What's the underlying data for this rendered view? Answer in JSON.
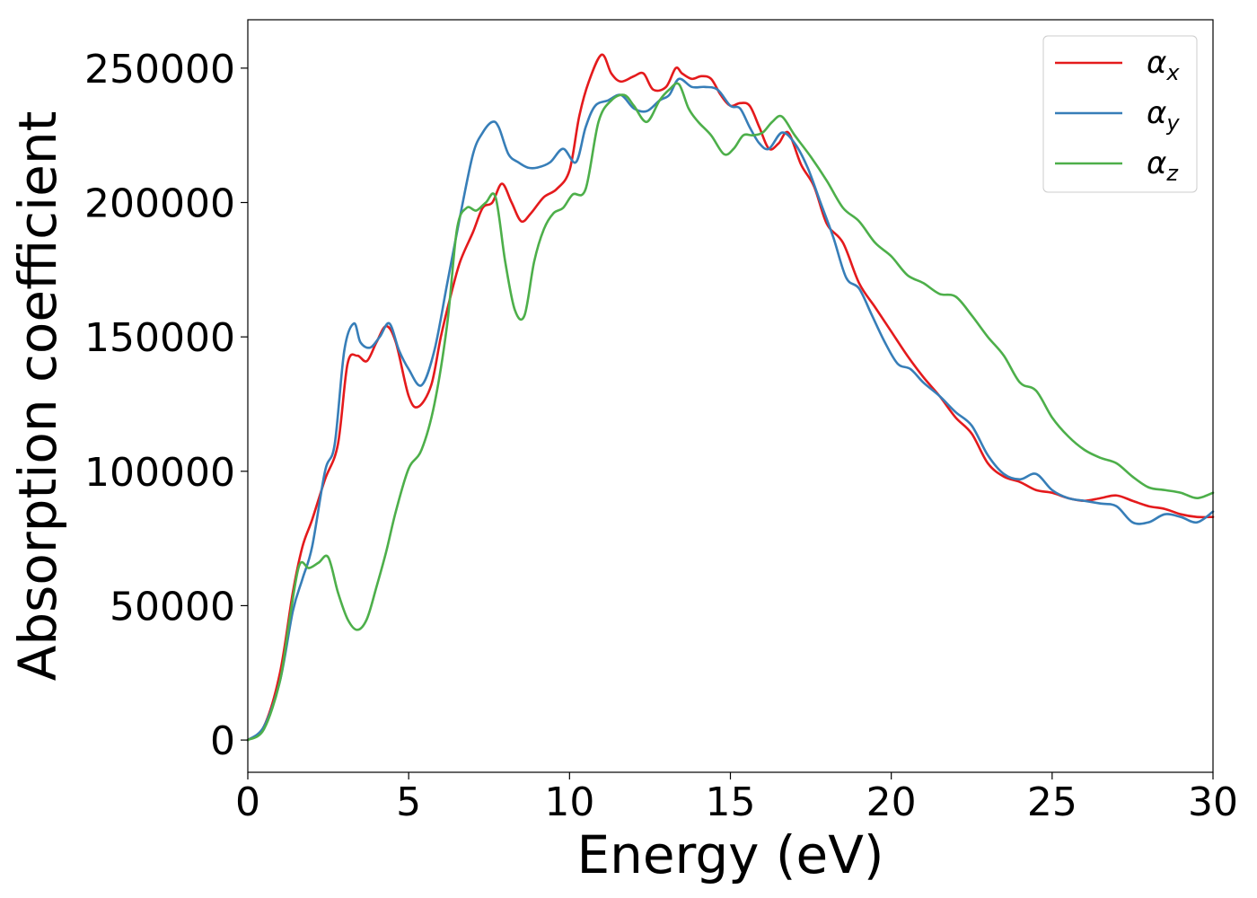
{
  "chart_data": {
    "type": "line",
    "xlabel": "Energy (eV)",
    "ylabel": "Absorption coefficient",
    "xlim": [
      0,
      30
    ],
    "ylim": [
      -12000,
      268000
    ],
    "xticks": [
      0,
      5,
      10,
      15,
      20,
      25,
      30
    ],
    "yticks": [
      0,
      50000,
      100000,
      150000,
      200000,
      250000
    ],
    "grid": false,
    "legend_position": "top-right",
    "series": [
      {
        "name": "αx",
        "symbol": "α",
        "subscript": "x",
        "color": "#e41a1c",
        "x": [
          0,
          0.5,
          1.0,
          1.4,
          1.7,
          2.0,
          2.4,
          2.8,
          3.1,
          3.4,
          3.7,
          4.0,
          4.3,
          4.6,
          5.0,
          5.3,
          5.7,
          6.0,
          6.3,
          6.6,
          7.0,
          7.3,
          7.6,
          7.9,
          8.2,
          8.5,
          8.8,
          9.2,
          9.6,
          10.0,
          10.3,
          10.6,
          11.0,
          11.3,
          11.6,
          12.0,
          12.3,
          12.6,
          13.0,
          13.3,
          13.5,
          13.8,
          14.1,
          14.4,
          14.7,
          15.0,
          15.3,
          15.6,
          15.9,
          16.2,
          16.5,
          16.8,
          17.2,
          17.6,
          18.0,
          18.5,
          19.0,
          19.5,
          20.0,
          20.5,
          21.0,
          21.5,
          22.0,
          22.5,
          23.0,
          23.5,
          24.0,
          24.5,
          25.0,
          25.5,
          26.0,
          26.5,
          27.0,
          27.5,
          28.0,
          28.5,
          29.0,
          29.5,
          30.0
        ],
        "values": [
          0,
          5000,
          25000,
          55000,
          72000,
          82000,
          97000,
          110000,
          140000,
          143000,
          141000,
          148000,
          154000,
          148000,
          128000,
          124000,
          132000,
          150000,
          165000,
          178000,
          189000,
          198000,
          200000,
          207000,
          200000,
          193000,
          196000,
          202000,
          205000,
          212000,
          232000,
          245000,
          255000,
          248000,
          245000,
          247000,
          248000,
          242000,
          243000,
          250000,
          248000,
          246000,
          247000,
          246000,
          240000,
          236000,
          237000,
          236000,
          228000,
          220000,
          222000,
          226000,
          214000,
          206000,
          192000,
          185000,
          170000,
          161000,
          152000,
          143000,
          135000,
          128000,
          120000,
          114000,
          103000,
          98000,
          96000,
          93000,
          92000,
          90000,
          89000,
          90000,
          91000,
          89000,
          87000,
          86000,
          84000,
          83000,
          83000
        ]
      },
      {
        "name": "αy",
        "symbol": "α",
        "subscript": "y",
        "color": "#377eb8",
        "x": [
          0,
          0.5,
          1.0,
          1.4,
          1.7,
          2.0,
          2.4,
          2.7,
          3.0,
          3.3,
          3.5,
          3.8,
          4.1,
          4.4,
          4.7,
          5.0,
          5.4,
          5.8,
          6.2,
          6.6,
          7.0,
          7.3,
          7.6,
          7.8,
          8.1,
          8.4,
          8.7,
          9.0,
          9.4,
          9.8,
          10.2,
          10.5,
          10.8,
          11.2,
          11.6,
          12.0,
          12.4,
          12.8,
          13.1,
          13.4,
          13.8,
          14.2,
          14.6,
          15.0,
          15.3,
          15.6,
          15.9,
          16.2,
          16.6,
          17.0,
          17.4,
          17.8,
          18.2,
          18.6,
          19.0,
          19.4,
          19.8,
          20.2,
          20.6,
          21.0,
          21.5,
          22.0,
          22.5,
          23.0,
          23.5,
          24.0,
          24.5,
          25.0,
          25.5,
          26.0,
          26.5,
          27.0,
          27.5,
          28.0,
          28.5,
          29.0,
          29.5,
          30.0
        ],
        "values": [
          0,
          5000,
          22000,
          48000,
          60000,
          72000,
          100000,
          110000,
          145000,
          155000,
          148000,
          146000,
          150000,
          155000,
          145000,
          138000,
          132000,
          145000,
          170000,
          195000,
          218000,
          226000,
          230000,
          228000,
          218000,
          215000,
          213000,
          213000,
          215000,
          220000,
          215000,
          228000,
          236000,
          238000,
          240000,
          235000,
          234000,
          238000,
          240000,
          246000,
          243000,
          243000,
          242000,
          236000,
          235000,
          228000,
          222000,
          220000,
          226000,
          222000,
          213000,
          200000,
          187000,
          172000,
          168000,
          158000,
          148000,
          140000,
          138000,
          133000,
          128000,
          122000,
          117000,
          106000,
          99000,
          97000,
          99000,
          93000,
          90000,
          89000,
          88000,
          87000,
          81000,
          81000,
          84000,
          83000,
          81000,
          85000
        ]
      },
      {
        "name": "αz",
        "symbol": "α",
        "subscript": "z",
        "color": "#4daf4a",
        "x": [
          0,
          0.5,
          1.0,
          1.3,
          1.6,
          1.9,
          2.2,
          2.5,
          2.8,
          3.1,
          3.4,
          3.7,
          4.0,
          4.3,
          4.6,
          5.0,
          5.4,
          5.8,
          6.2,
          6.5,
          6.8,
          7.1,
          7.4,
          7.7,
          8.0,
          8.3,
          8.6,
          8.9,
          9.2,
          9.5,
          9.8,
          10.1,
          10.5,
          10.9,
          11.3,
          11.7,
          12.0,
          12.4,
          12.8,
          13.1,
          13.4,
          13.7,
          14.0,
          14.4,
          14.8,
          15.1,
          15.4,
          15.7,
          16.0,
          16.3,
          16.6,
          17.0,
          17.5,
          18.0,
          18.5,
          19.0,
          19.5,
          20.0,
          20.5,
          21.0,
          21.5,
          22.0,
          22.5,
          23.0,
          23.5,
          24.0,
          24.5,
          25.0,
          25.5,
          26.0,
          26.5,
          27.0,
          27.5,
          28.0,
          28.5,
          29.0,
          29.5,
          30.0
        ],
        "values": [
          0,
          4000,
          22000,
          45000,
          65000,
          64000,
          66000,
          68000,
          55000,
          45000,
          41000,
          45000,
          57000,
          70000,
          85000,
          101000,
          108000,
          125000,
          155000,
          190000,
          198000,
          197000,
          200000,
          202000,
          178000,
          160000,
          158000,
          178000,
          190000,
          196000,
          198000,
          203000,
          205000,
          230000,
          238000,
          240000,
          236000,
          230000,
          238000,
          242000,
          244000,
          235000,
          230000,
          225000,
          218000,
          220000,
          225000,
          225000,
          226000,
          230000,
          232000,
          225000,
          217000,
          208000,
          198000,
          193000,
          185000,
          180000,
          173000,
          170000,
          166000,
          165000,
          158000,
          150000,
          143000,
          133000,
          130000,
          120000,
          113000,
          108000,
          105000,
          103000,
          98000,
          94000,
          93000,
          92000,
          90000,
          92000
        ]
      }
    ]
  }
}
